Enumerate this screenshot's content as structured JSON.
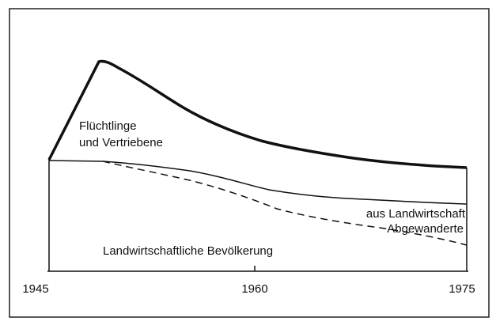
{
  "labels": {
    "refugees_line1": "Flüchtlinge",
    "refugees_line2": "und Vertriebene",
    "migrated_line1": "aus Landwirtschaft",
    "migrated_line2": "Abgewanderte",
    "agricultural": "Landwirtschaftliche Bevölkerung"
  },
  "x_axis": {
    "ticks": [
      "1945",
      "1960",
      "1975"
    ]
  }
}
